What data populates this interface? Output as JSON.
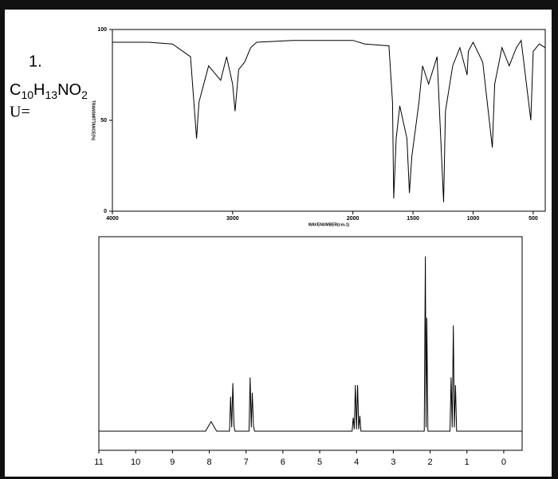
{
  "problem": {
    "number": "1.",
    "formula": [
      "C",
      "10",
      "H",
      "13",
      "NO",
      "2"
    ],
    "unsaturation_label": "U="
  },
  "chart_data": [
    {
      "type": "line",
      "xlabel": "WAVENUMBER(cm-1)",
      "ylabel": "TRANSMITTANCE(%)",
      "color": "#000000",
      "x": [
        4000,
        3700,
        3500,
        3350,
        3300,
        3280,
        3200,
        3100,
        3050,
        3000,
        2980,
        2950,
        2900,
        2850,
        2800,
        2500,
        2000,
        1900,
        1700,
        1670,
        1660,
        1640,
        1610,
        1550,
        1530,
        1510,
        1480,
        1450,
        1420,
        1370,
        1300,
        1245,
        1230,
        1170,
        1110,
        1050,
        1040,
        1000,
        920,
        840,
        820,
        760,
        700,
        640,
        600,
        520,
        500,
        450,
        400
      ],
      "values": [
        93,
        93,
        92,
        85,
        40,
        60,
        80,
        72,
        85,
        70,
        55,
        78,
        82,
        90,
        93,
        94,
        94,
        92,
        91,
        60,
        7,
        40,
        58,
        40,
        10,
        30,
        45,
        60,
        80,
        70,
        85,
        5,
        55,
        80,
        90,
        75,
        88,
        93,
        82,
        35,
        70,
        90,
        80,
        90,
        94,
        50,
        88,
        92,
        90
      ],
      "xlim": [
        4000,
        400
      ],
      "ylim": [
        0,
        100
      ],
      "xticks": [
        4000,
        3000,
        2000,
        1500,
        1000,
        500
      ],
      "yticks": [
        0,
        50,
        100
      ]
    },
    {
      "type": "line",
      "color": "#000000",
      "x": [
        11,
        8.1,
        7.95,
        7.8,
        7.45,
        7.42,
        7.39,
        7.36,
        7.33,
        7.3,
        6.92,
        6.89,
        6.86,
        6.83,
        6.8,
        6.77,
        4.12,
        4.09,
        4.06,
        4.03,
        4.0,
        3.97,
        3.94,
        3.91,
        3.88,
        2.16,
        2.13,
        2.11,
        2.09,
        2.06,
        1.46,
        1.43,
        1.4,
        1.37,
        1.34,
        1.31,
        1.28,
        -0.5
      ],
      "values": [
        0,
        0,
        5,
        0,
        0,
        18,
        2,
        25,
        3,
        0,
        0,
        28,
        2,
        20,
        3,
        0,
        0,
        7,
        1,
        24,
        1,
        24,
        1,
        8,
        0,
        0,
        91,
        2,
        59,
        0,
        0,
        28,
        2,
        55,
        2,
        24,
        0,
        0
      ],
      "xlim": [
        11,
        -0.5
      ],
      "ylim": [
        0,
        100
      ],
      "xticks": [
        11,
        10,
        9,
        8,
        7,
        6,
        5,
        4,
        3,
        2,
        1,
        0
      ]
    }
  ]
}
